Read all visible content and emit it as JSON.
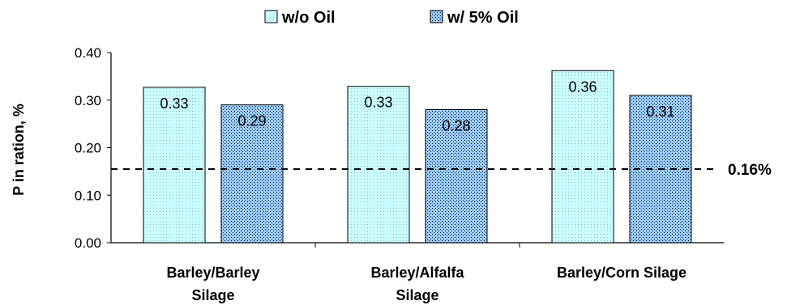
{
  "chart_data": {
    "type": "bar",
    "title": "",
    "xlabel": "",
    "ylabel": "P in ration, %",
    "ylim": [
      0,
      0.4
    ],
    "yticks": [
      "0.00",
      "0.10",
      "0.20",
      "0.30",
      "0.40"
    ],
    "categories": [
      [
        "Barley/Barley",
        "Silage"
      ],
      [
        "Barley/Alfalfa",
        "Silage"
      ],
      [
        "Barley/Corn Silage"
      ]
    ],
    "series": [
      {
        "name": "w/o Oil",
        "values": [
          0.327,
          0.329,
          0.362
        ],
        "labels": [
          "0.33",
          "0.33",
          "0.36"
        ],
        "color": "#ccffff"
      },
      {
        "name": "w/ 5% Oil",
        "values": [
          0.29,
          0.28,
          0.31
        ],
        "labels": [
          "0.29",
          "0.28",
          "0.31"
        ],
        "color": "#99ccff"
      }
    ],
    "reference_line": {
      "value": 0.155,
      "label": "0.16%"
    },
    "legend_position": "top-center",
    "grid": false
  }
}
